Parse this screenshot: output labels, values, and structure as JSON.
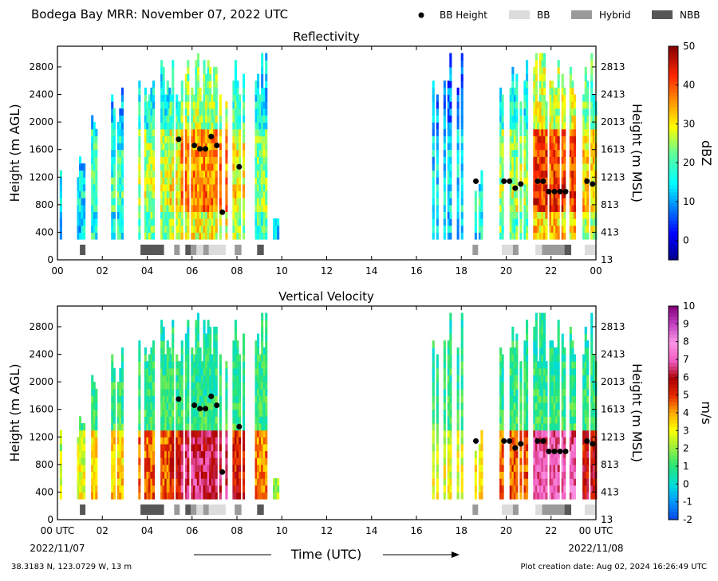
{
  "header": {
    "title": "Bodega Bay MRR:  November 07, 2022 UTC",
    "legend": [
      {
        "label": "BB Height",
        "kind": "dot",
        "color": "#000000"
      },
      {
        "label": "BB",
        "kind": "bar",
        "color": "#dcdcdc"
      },
      {
        "label": "Hybrid",
        "kind": "bar",
        "color": "#9a9a9a"
      },
      {
        "label": "NBB",
        "kind": "bar",
        "color": "#575757"
      }
    ]
  },
  "chart_data": [
    {
      "type": "heatmap",
      "title": "Reflectivity",
      "ylabel": "Height (m AGL)",
      "ylabel_right": "Height (m MSL)",
      "x_ticks": [
        "00",
        "02",
        "04",
        "06",
        "08",
        "10",
        "12",
        "14",
        "16",
        "18",
        "20",
        "22",
        "00"
      ],
      "y_ticks": [
        "0",
        "400",
        "800",
        "1200",
        "1600",
        "2000",
        "2400",
        "2800"
      ],
      "y_ticks_right": [
        "13",
        "413",
        "813",
        "1213",
        "1613",
        "2013",
        "2413",
        "2813"
      ],
      "xlim": [
        0,
        24
      ],
      "ylim": [
        0,
        3100
      ],
      "colorbar": {
        "label": "dBZ",
        "range": [
          -5,
          50
        ],
        "ticks": [
          "0",
          "10",
          "20",
          "30",
          "40",
          "50"
        ],
        "tick_values": [
          0,
          10,
          20,
          30,
          40,
          50
        ]
      }
    },
    {
      "type": "heatmap",
      "title": "Vertical Velocity",
      "ylabel": "Height (m AGL)",
      "ylabel_right": "Height (m MSL)",
      "x_ticks": [
        "00 UTC",
        "02",
        "04",
        "06",
        "08",
        "10",
        "12",
        "14",
        "16",
        "18",
        "20",
        "22",
        "00 UTC"
      ],
      "y_ticks": [
        "0",
        "400",
        "800",
        "1200",
        "1600",
        "2000",
        "2400",
        "2800"
      ],
      "y_ticks_right": [
        "13",
        "413",
        "813",
        "1213",
        "1613",
        "2013",
        "2413",
        "2813"
      ],
      "xlim": [
        0,
        24
      ],
      "ylim": [
        0,
        3100
      ],
      "colorbar": {
        "label": "m/s",
        "range": [
          -2,
          10
        ],
        "ticks": [
          "-2",
          "-1",
          "0",
          "1",
          "2",
          "3",
          "4",
          "5",
          "6",
          "7",
          "8",
          "9",
          "10"
        ],
        "tick_values": [
          -2,
          -1,
          0,
          1,
          2,
          3,
          4,
          5,
          6,
          7,
          8,
          9,
          10
        ]
      }
    }
  ],
  "bb_height": [
    {
      "t": 5.4,
      "h": 1750
    },
    {
      "t": 6.1,
      "h": 1660
    },
    {
      "t": 6.35,
      "h": 1610
    },
    {
      "t": 6.6,
      "h": 1610
    },
    {
      "t": 6.85,
      "h": 1790
    },
    {
      "t": 7.1,
      "h": 1660
    },
    {
      "t": 7.35,
      "h": 690
    },
    {
      "t": 8.1,
      "h": 1350
    },
    {
      "t": 18.65,
      "h": 1140
    },
    {
      "t": 19.9,
      "h": 1140
    },
    {
      "t": 20.15,
      "h": 1140
    },
    {
      "t": 20.4,
      "h": 1040
    },
    {
      "t": 20.65,
      "h": 1100
    },
    {
      "t": 21.4,
      "h": 1140
    },
    {
      "t": 21.65,
      "h": 1140
    },
    {
      "t": 21.9,
      "h": 990
    },
    {
      "t": 22.15,
      "h": 990
    },
    {
      "t": 22.4,
      "h": 990
    },
    {
      "t": 22.65,
      "h": 990
    },
    {
      "t": 23.6,
      "h": 1140
    },
    {
      "t": 23.85,
      "h": 1100
    }
  ],
  "bb_class": [
    {
      "start": 1.0,
      "end": 1.25,
      "class": "NBB"
    },
    {
      "start": 3.7,
      "end": 4.75,
      "class": "NBB"
    },
    {
      "start": 5.2,
      "end": 5.45,
      "class": "Hybrid"
    },
    {
      "start": 5.7,
      "end": 5.95,
      "class": "NBB"
    },
    {
      "start": 5.95,
      "end": 6.2,
      "class": "Hybrid"
    },
    {
      "start": 6.2,
      "end": 6.5,
      "class": "BB"
    },
    {
      "start": 6.5,
      "end": 6.75,
      "class": "Hybrid"
    },
    {
      "start": 6.75,
      "end": 7.5,
      "class": "BB"
    },
    {
      "start": 7.9,
      "end": 8.2,
      "class": "Hybrid"
    },
    {
      "start": 8.9,
      "end": 9.2,
      "class": "NBB"
    },
    {
      "start": 18.5,
      "end": 18.75,
      "class": "Hybrid"
    },
    {
      "start": 19.8,
      "end": 20.3,
      "class": "BB"
    },
    {
      "start": 20.3,
      "end": 20.55,
      "class": "Hybrid"
    },
    {
      "start": 21.3,
      "end": 21.6,
      "class": "BB"
    },
    {
      "start": 21.6,
      "end": 22.6,
      "class": "Hybrid"
    },
    {
      "start": 22.6,
      "end": 22.9,
      "class": "NBB"
    },
    {
      "start": 23.5,
      "end": 24.0,
      "class": "BB"
    }
  ],
  "footer": {
    "date_start": "2022/11/07",
    "date_end": "2022/11/08",
    "xlabel": "Time (UTC)",
    "location": "38.3183 N, 123.0729 W, 13 m",
    "creation": "Plot creation date: Aug 02, 2024 16:26:49 UTC"
  }
}
